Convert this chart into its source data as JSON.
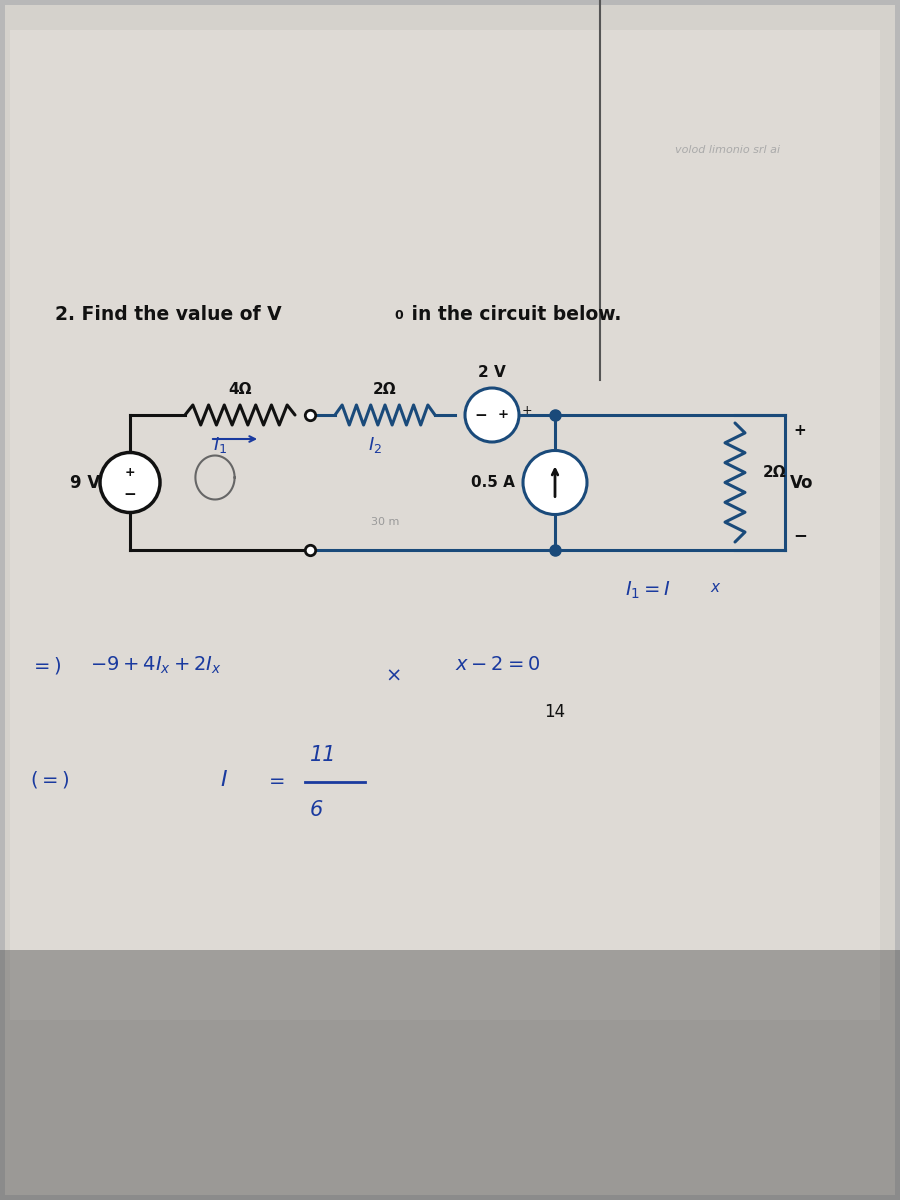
{
  "bg_color": "#b8b8b8",
  "paper_color": "#e0ddd8",
  "circuit_color": "#1a4a7a",
  "black_color": "#111111",
  "handwriting_color": "#1a3a9f",
  "title_text": "2. Find the value of V",
  "title_sub": "0",
  "title_rest": " in the circuit below.",
  "watermark": "volod limonio srl ai",
  "label_4ohm": "4Ω",
  "label_2ohm_top": "2Ω",
  "label_2v": "2 V",
  "label_9v": "9 V",
  "label_05a": "0.5 A",
  "label_2ohm_right": "2Ω",
  "label_vo": "Vo",
  "label_i1": "I₁",
  "label_i2": "I₂",
  "label_ix_eq": "I₁ = I",
  "eq1": "=)  -9 + 4Iₓ + 2Iₓ × -2 = 0",
  "eq2": "I = 11/6",
  "note14": "14"
}
